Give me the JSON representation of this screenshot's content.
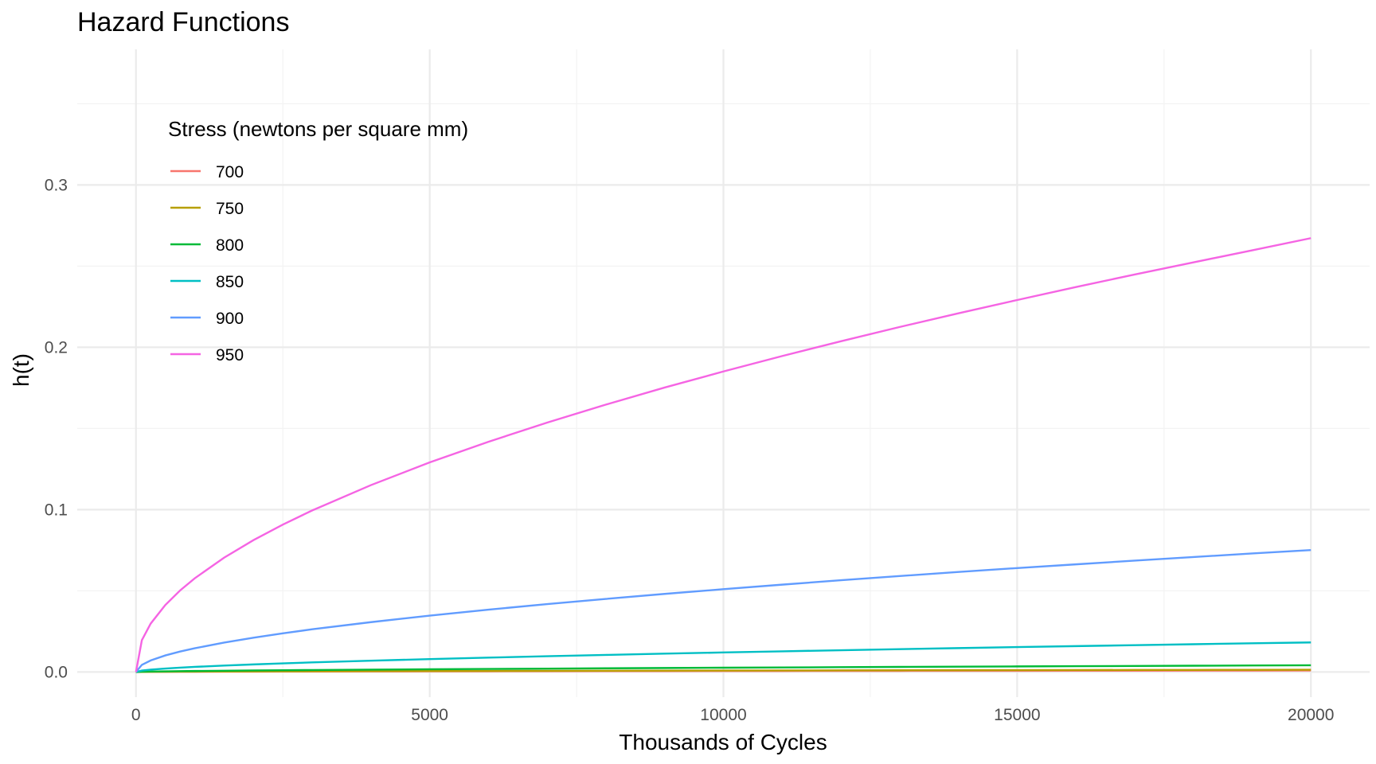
{
  "chart_data": {
    "type": "line",
    "title": "Hazard Functions",
    "xlabel": "Thousands of Cycles",
    "ylabel": "h(t)",
    "xlim": [
      -1000,
      21000
    ],
    "ylim": [
      -0.0155,
      0.3835
    ],
    "x_ticks": [
      0,
      5000,
      10000,
      15000,
      20000
    ],
    "x_tick_labels": [
      "0",
      "5000",
      "10000",
      "15000",
      "20000"
    ],
    "x_minor_ticks": [
      2500,
      7500,
      12500,
      17500
    ],
    "y_ticks": [
      0.0,
      0.1,
      0.2,
      0.3
    ],
    "y_tick_labels": [
      "0.0",
      "0.1",
      "0.2",
      "0.3"
    ],
    "y_minor_ticks": [
      0.05,
      0.15,
      0.25,
      0.35
    ],
    "grid": true,
    "legend": {
      "title": "Stress (newtons per square mm)",
      "placement": "top-left inside"
    },
    "x": [
      0,
      100,
      250,
      500,
      750,
      1000,
      1500,
      2000,
      2500,
      3000,
      4000,
      5000,
      6000,
      7000,
      8000,
      9000,
      10000,
      11000,
      12000,
      13000,
      14000,
      15000,
      16000,
      17000,
      18000,
      19000,
      20000
    ],
    "series": [
      {
        "name": "700",
        "color": "#F8766D",
        "values": [
          0,
          5e-05,
          8e-05,
          0.00011,
          0.00014,
          0.00016,
          0.0002,
          0.00023,
          0.00026,
          0.00029,
          0.00034,
          0.00038,
          0.00043,
          0.00047,
          0.0005,
          0.00054,
          0.00058,
          0.00061,
          0.00064,
          0.00068,
          0.00071,
          0.00074,
          0.00077,
          0.00079,
          0.00082,
          0.00085,
          0.00088
        ]
      },
      {
        "name": "750",
        "color": "#B79F00",
        "values": [
          0,
          7e-05,
          0.00011,
          0.00016,
          0.0002,
          0.00024,
          0.0003,
          0.00035,
          0.0004,
          0.00044,
          0.00052,
          0.00059,
          0.00066,
          0.00072,
          0.00078,
          0.00084,
          0.0009,
          0.00095,
          0.001,
          0.00105,
          0.0011,
          0.00115,
          0.00119,
          0.00124,
          0.00128,
          0.00133,
          0.00137
        ]
      },
      {
        "name": "800",
        "color": "#00BA38",
        "values": [
          0,
          0.00016,
          0.00027,
          0.0004,
          0.00051,
          0.00061,
          0.00078,
          0.00093,
          0.00107,
          0.0012,
          0.00145,
          0.00167,
          0.00188,
          0.00208,
          0.00227,
          0.00245,
          0.00263,
          0.0028,
          0.00296,
          0.00312,
          0.00328,
          0.00343,
          0.00358,
          0.00372,
          0.00386,
          0.004,
          0.00414
        ]
      },
      {
        "name": "850",
        "color": "#00BFC4",
        "values": [
          0,
          0.00088,
          0.00145,
          0.00213,
          0.00267,
          0.00314,
          0.00395,
          0.00466,
          0.0053,
          0.00589,
          0.00697,
          0.00795,
          0.00886,
          0.00971,
          0.01052,
          0.01129,
          0.01203,
          0.01273,
          0.01341,
          0.01407,
          0.01471,
          0.01533,
          0.01593,
          0.01652,
          0.0171,
          0.01766,
          0.0182
        ]
      },
      {
        "name": "900",
        "color": "#619CFF",
        "values": [
          0,
          0.0044,
          0.0071,
          0.0102,
          0.0126,
          0.0146,
          0.0181,
          0.0211,
          0.0238,
          0.0263,
          0.0307,
          0.0347,
          0.0384,
          0.0418,
          0.045,
          0.0481,
          0.051,
          0.0538,
          0.0565,
          0.0591,
          0.0616,
          0.064,
          0.0663,
          0.0686,
          0.0708,
          0.073,
          0.0751
        ]
      },
      {
        "name": "950",
        "color": "#F564E3",
        "values": [
          0,
          0.0196,
          0.0298,
          0.0413,
          0.0502,
          0.0577,
          0.0704,
          0.0812,
          0.0908,
          0.0995,
          0.1151,
          0.1291,
          0.1418,
          0.1536,
          0.1647,
          0.1752,
          0.1851,
          0.1946,
          0.2037,
          0.2125,
          0.2209,
          0.2291,
          0.2371,
          0.2448,
          0.2523,
          0.2597,
          0.2672
        ]
      }
    ]
  }
}
